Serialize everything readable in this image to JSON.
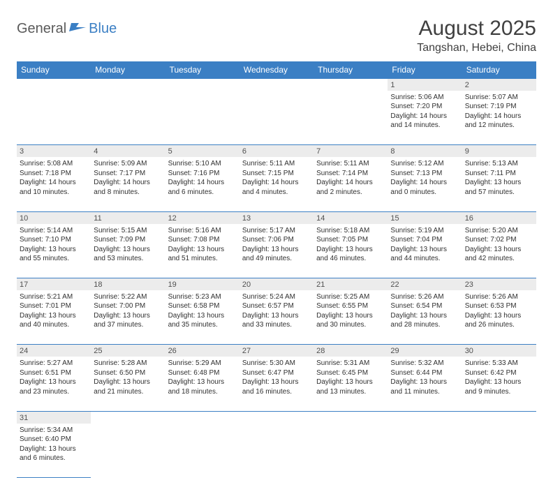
{
  "logo": {
    "part1": "General",
    "part2": "Blue"
  },
  "title": "August 2025",
  "location": "Tangshan, Hebei, China",
  "colors": {
    "header_bg": "#3b7fc4",
    "header_text": "#ffffff",
    "daynum_bg": "#ececec",
    "cell_border": "#3b7fc4",
    "body_text": "#303030",
    "title_text": "#404040"
  },
  "weekdays": [
    "Sunday",
    "Monday",
    "Tuesday",
    "Wednesday",
    "Thursday",
    "Friday",
    "Saturday"
  ],
  "weeks": [
    [
      null,
      null,
      null,
      null,
      null,
      {
        "n": "1",
        "sr": "Sunrise: 5:06 AM",
        "ss": "Sunset: 7:20 PM",
        "d1": "Daylight: 14 hours",
        "d2": "and 14 minutes."
      },
      {
        "n": "2",
        "sr": "Sunrise: 5:07 AM",
        "ss": "Sunset: 7:19 PM",
        "d1": "Daylight: 14 hours",
        "d2": "and 12 minutes."
      }
    ],
    [
      {
        "n": "3",
        "sr": "Sunrise: 5:08 AM",
        "ss": "Sunset: 7:18 PM",
        "d1": "Daylight: 14 hours",
        "d2": "and 10 minutes."
      },
      {
        "n": "4",
        "sr": "Sunrise: 5:09 AM",
        "ss": "Sunset: 7:17 PM",
        "d1": "Daylight: 14 hours",
        "d2": "and 8 minutes."
      },
      {
        "n": "5",
        "sr": "Sunrise: 5:10 AM",
        "ss": "Sunset: 7:16 PM",
        "d1": "Daylight: 14 hours",
        "d2": "and 6 minutes."
      },
      {
        "n": "6",
        "sr": "Sunrise: 5:11 AM",
        "ss": "Sunset: 7:15 PM",
        "d1": "Daylight: 14 hours",
        "d2": "and 4 minutes."
      },
      {
        "n": "7",
        "sr": "Sunrise: 5:11 AM",
        "ss": "Sunset: 7:14 PM",
        "d1": "Daylight: 14 hours",
        "d2": "and 2 minutes."
      },
      {
        "n": "8",
        "sr": "Sunrise: 5:12 AM",
        "ss": "Sunset: 7:13 PM",
        "d1": "Daylight: 14 hours",
        "d2": "and 0 minutes."
      },
      {
        "n": "9",
        "sr": "Sunrise: 5:13 AM",
        "ss": "Sunset: 7:11 PM",
        "d1": "Daylight: 13 hours",
        "d2": "and 57 minutes."
      }
    ],
    [
      {
        "n": "10",
        "sr": "Sunrise: 5:14 AM",
        "ss": "Sunset: 7:10 PM",
        "d1": "Daylight: 13 hours",
        "d2": "and 55 minutes."
      },
      {
        "n": "11",
        "sr": "Sunrise: 5:15 AM",
        "ss": "Sunset: 7:09 PM",
        "d1": "Daylight: 13 hours",
        "d2": "and 53 minutes."
      },
      {
        "n": "12",
        "sr": "Sunrise: 5:16 AM",
        "ss": "Sunset: 7:08 PM",
        "d1": "Daylight: 13 hours",
        "d2": "and 51 minutes."
      },
      {
        "n": "13",
        "sr": "Sunrise: 5:17 AM",
        "ss": "Sunset: 7:06 PM",
        "d1": "Daylight: 13 hours",
        "d2": "and 49 minutes."
      },
      {
        "n": "14",
        "sr": "Sunrise: 5:18 AM",
        "ss": "Sunset: 7:05 PM",
        "d1": "Daylight: 13 hours",
        "d2": "and 46 minutes."
      },
      {
        "n": "15",
        "sr": "Sunrise: 5:19 AM",
        "ss": "Sunset: 7:04 PM",
        "d1": "Daylight: 13 hours",
        "d2": "and 44 minutes."
      },
      {
        "n": "16",
        "sr": "Sunrise: 5:20 AM",
        "ss": "Sunset: 7:02 PM",
        "d1": "Daylight: 13 hours",
        "d2": "and 42 minutes."
      }
    ],
    [
      {
        "n": "17",
        "sr": "Sunrise: 5:21 AM",
        "ss": "Sunset: 7:01 PM",
        "d1": "Daylight: 13 hours",
        "d2": "and 40 minutes."
      },
      {
        "n": "18",
        "sr": "Sunrise: 5:22 AM",
        "ss": "Sunset: 7:00 PM",
        "d1": "Daylight: 13 hours",
        "d2": "and 37 minutes."
      },
      {
        "n": "19",
        "sr": "Sunrise: 5:23 AM",
        "ss": "Sunset: 6:58 PM",
        "d1": "Daylight: 13 hours",
        "d2": "and 35 minutes."
      },
      {
        "n": "20",
        "sr": "Sunrise: 5:24 AM",
        "ss": "Sunset: 6:57 PM",
        "d1": "Daylight: 13 hours",
        "d2": "and 33 minutes."
      },
      {
        "n": "21",
        "sr": "Sunrise: 5:25 AM",
        "ss": "Sunset: 6:55 PM",
        "d1": "Daylight: 13 hours",
        "d2": "and 30 minutes."
      },
      {
        "n": "22",
        "sr": "Sunrise: 5:26 AM",
        "ss": "Sunset: 6:54 PM",
        "d1": "Daylight: 13 hours",
        "d2": "and 28 minutes."
      },
      {
        "n": "23",
        "sr": "Sunrise: 5:26 AM",
        "ss": "Sunset: 6:53 PM",
        "d1": "Daylight: 13 hours",
        "d2": "and 26 minutes."
      }
    ],
    [
      {
        "n": "24",
        "sr": "Sunrise: 5:27 AM",
        "ss": "Sunset: 6:51 PM",
        "d1": "Daylight: 13 hours",
        "d2": "and 23 minutes."
      },
      {
        "n": "25",
        "sr": "Sunrise: 5:28 AM",
        "ss": "Sunset: 6:50 PM",
        "d1": "Daylight: 13 hours",
        "d2": "and 21 minutes."
      },
      {
        "n": "26",
        "sr": "Sunrise: 5:29 AM",
        "ss": "Sunset: 6:48 PM",
        "d1": "Daylight: 13 hours",
        "d2": "and 18 minutes."
      },
      {
        "n": "27",
        "sr": "Sunrise: 5:30 AM",
        "ss": "Sunset: 6:47 PM",
        "d1": "Daylight: 13 hours",
        "d2": "and 16 minutes."
      },
      {
        "n": "28",
        "sr": "Sunrise: 5:31 AM",
        "ss": "Sunset: 6:45 PM",
        "d1": "Daylight: 13 hours",
        "d2": "and 13 minutes."
      },
      {
        "n": "29",
        "sr": "Sunrise: 5:32 AM",
        "ss": "Sunset: 6:44 PM",
        "d1": "Daylight: 13 hours",
        "d2": "and 11 minutes."
      },
      {
        "n": "30",
        "sr": "Sunrise: 5:33 AM",
        "ss": "Sunset: 6:42 PM",
        "d1": "Daylight: 13 hours",
        "d2": "and 9 minutes."
      }
    ],
    [
      {
        "n": "31",
        "sr": "Sunrise: 5:34 AM",
        "ss": "Sunset: 6:40 PM",
        "d1": "Daylight: 13 hours",
        "d2": "and 6 minutes."
      },
      null,
      null,
      null,
      null,
      null,
      null
    ]
  ]
}
